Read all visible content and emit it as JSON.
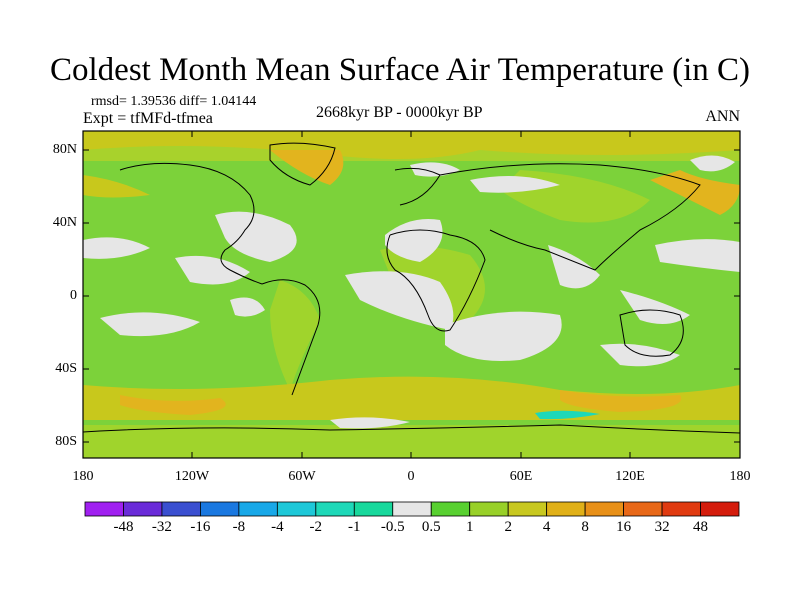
{
  "title": "Coldest Month Mean Surface Air Temperature (in C)",
  "stats": "rmsd= 1.39536  diff= 1.04144",
  "experiment": "Expt = tfMFd-tfmea",
  "period": "2668kyr BP - 0000kyr BP",
  "season": "ANN",
  "lat_labels": [
    "80N",
    "40N",
    "0",
    "40S",
    "80S"
  ],
  "lon_labels": [
    "180",
    "120W",
    "60W",
    "0",
    "60E",
    "120E",
    "180"
  ],
  "colorbar": {
    "labels": [
      "-48",
      "-32",
      "-16",
      "-8",
      "-4",
      "-2",
      "-1",
      "-0.5",
      "0.5",
      "1",
      "2",
      "4",
      "8",
      "16",
      "32",
      "48"
    ],
    "colors": [
      "#a020f0",
      "#6a2bd8",
      "#3a4fd0",
      "#1a78e0",
      "#18a8e8",
      "#1ec8d8",
      "#1ed8b8",
      "#18d89c",
      "#e6e6e6",
      "#58d030",
      "#98d028",
      "#c8c820",
      "#e0b018",
      "#e89018",
      "#e86818",
      "#e03a10",
      "#d41c0c"
    ]
  },
  "colors": {
    "land_ocean_base": "#7cd23a",
    "light_green": "#a0d42c",
    "yellow": "#c8c81c",
    "orange": "#e2b41e",
    "near_zero": "#e6e6e6",
    "coastline": "#000000"
  }
}
